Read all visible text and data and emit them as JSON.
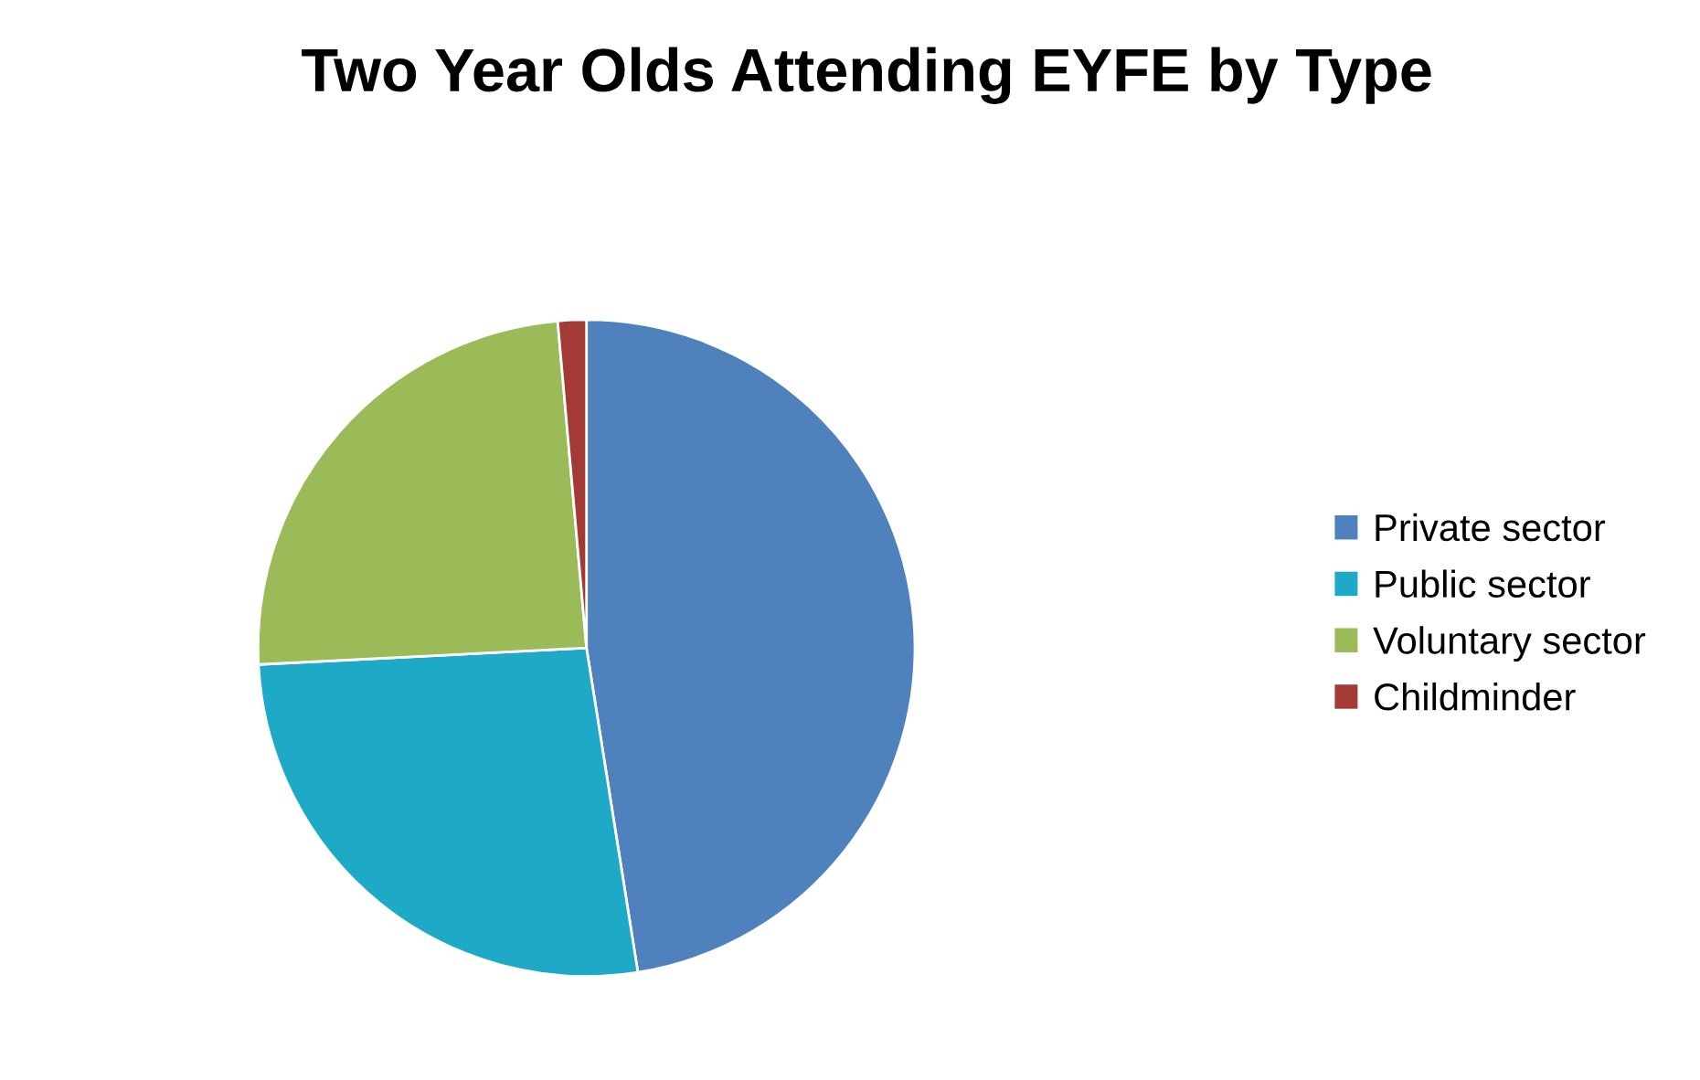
{
  "chart_data": {
    "type": "pie",
    "title": "Two Year Olds Attending EYFE by Type",
    "categories": [
      "Private sector",
      "Public sector",
      "Voluntary sector",
      "Childminder"
    ],
    "values": [
      47.5,
      26.7,
      24.4,
      1.4
    ],
    "colors": [
      "#4f81bd",
      "#1eaac6",
      "#9bbb59",
      "#a33a36"
    ],
    "legend": "right"
  }
}
